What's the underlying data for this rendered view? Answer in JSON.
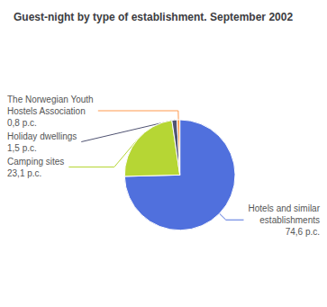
{
  "chart_data": {
    "type": "pie",
    "title": "Guest-night by type of establishment. September 2002",
    "categories": [
      "Hotels and similar\nestablishments",
      "Camping sites",
      "Holiday dwellings",
      "The Norwegian Youth\nHostels Association"
    ],
    "values": [
      74.6,
      23.1,
      1.5,
      0.8
    ],
    "value_labels": [
      "74,6 p.c.",
      "23,1 p.c.",
      "1,5 p.c.",
      "0,8 p.c."
    ],
    "data_labels": true,
    "legend": false
  }
}
